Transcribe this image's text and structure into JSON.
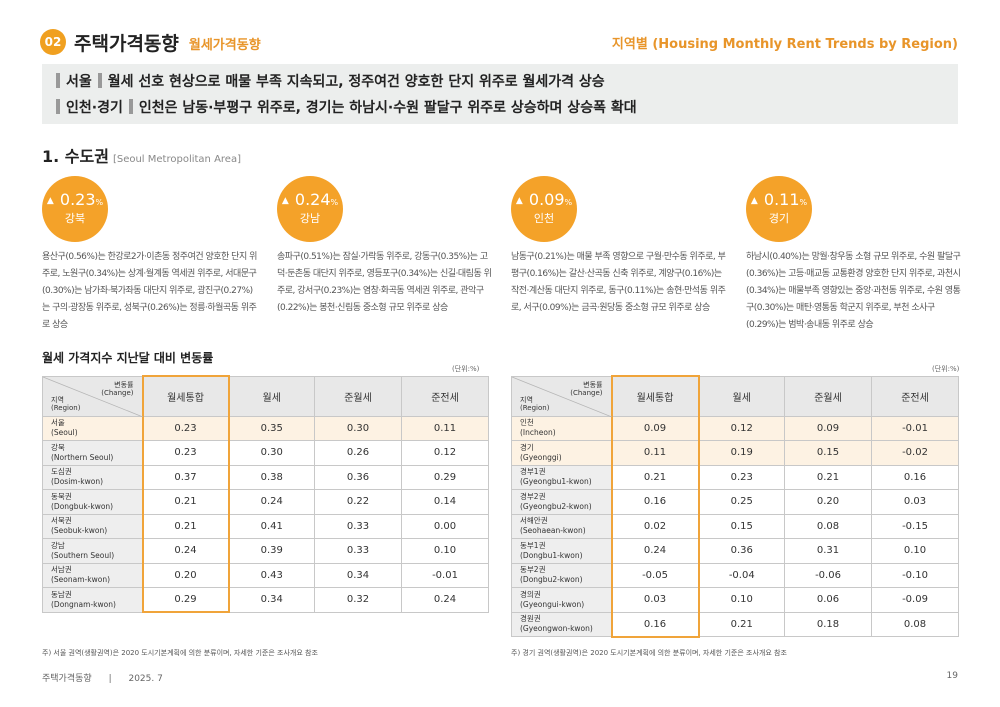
{
  "header": {
    "section_number": "02",
    "section_title": "주택가격동향",
    "section_subtitle": "월세가격동향",
    "region_title": "지역별 (Housing Monthly Rent Trends by Region)"
  },
  "summary": {
    "lines": [
      {
        "region": "서울",
        "text": "월세 선호 현상으로 매물 부족 지속되고, 정주여건 양호한 단지 위주로 월세가격 상승"
      },
      {
        "region": "인천·경기",
        "text": "인천은 남동·부평구 위주로, 경기는 하남시·수원 팔달구 위주로 상승하며 상승폭 확대"
      }
    ]
  },
  "metro": {
    "title": "1. 수도권",
    "title_en": "[Seoul Metropolitan Area]"
  },
  "highlights": [
    {
      "value": "0.23",
      "unit": "%",
      "name": "강북",
      "desc": "용산구(0.56%)는 한강로2가·이촌동 정주여건 양호한 단지 위주로, 노원구(0.34%)는 상계·월계동 역세권 위주로, 서대문구(0.30%)는 남가좌·북가좌동 대단지 위주로, 광진구(0.27%)는 구의·광장동 위주로, 성북구(0.26%)는 정릉·하월곡동 위주로 상승"
    },
    {
      "value": "0.24",
      "unit": "%",
      "name": "강남",
      "desc": "송파구(0.51%)는 잠실·가락동 위주로, 강동구(0.35%)는 고덕·둔촌동 대단지 위주로, 영등포구(0.34%)는 신길·대림동 위주로, 강서구(0.23%)는 염창·화곡동 역세권 위주로, 관악구(0.22%)는 봉천·신림동 중소형 규모 위주로 상승"
    },
    {
      "value": "0.09",
      "unit": "%",
      "name": "인천",
      "desc": "남동구(0.21%)는 매물 부족 영향으로 구월·만수동 위주로, 부평구(0.16%)는 갈산·산곡동 신축 위주로, 계양구(0.16%)는 작전·계산동 대단지 위주로, 동구(0.11%)는 송현·만석동 위주로, 서구(0.09%)는 금곡·원당동 중소형 규모 위주로 상승"
    },
    {
      "value": "0.11",
      "unit": "%",
      "name": "경기",
      "desc": "하남시(0.40%)는 망월·창우동 소형 규모 위주로, 수원 팔달구(0.36%)는 고등·매교동 교통환경 양호한 단지 위주로, 과천시(0.34%)는 매물부족 영향있는 중앙·과천동 위주로, 수원 영통구(0.30%)는 매탄·영통동 학군지 위주로, 부천 소사구(0.29%)는 범박·송내동 위주로 상승"
    }
  ],
  "table_title": "월세 가격지수 지난달 대비 변동률",
  "unit_label": "(단위:%)",
  "table_header": {
    "change": "변동률",
    "change_en": "(Change)",
    "region": "지역",
    "region_en": "(Region)",
    "columns": [
      "월세통합",
      "월세",
      "준월세",
      "준전세"
    ]
  },
  "table_left": [
    {
      "name": "서울",
      "name_en": "(Seoul)",
      "values": [
        "0.23",
        "0.35",
        "0.30",
        "0.11"
      ]
    },
    {
      "name": "강북",
      "name_en": "(Northern Seoul)",
      "values": [
        "0.23",
        "0.30",
        "0.26",
        "0.12"
      ]
    },
    {
      "name": "도심권",
      "name_en": "(Dosim-kwon)",
      "values": [
        "0.37",
        "0.38",
        "0.36",
        "0.29"
      ]
    },
    {
      "name": "동북권",
      "name_en": "(Dongbuk-kwon)",
      "values": [
        "0.21",
        "0.24",
        "0.22",
        "0.14"
      ]
    },
    {
      "name": "서북권",
      "name_en": "(Seobuk-kwon)",
      "values": [
        "0.21",
        "0.41",
        "0.33",
        "0.00"
      ]
    },
    {
      "name": "강남",
      "name_en": "(Southern Seoul)",
      "values": [
        "0.24",
        "0.39",
        "0.33",
        "0.10"
      ]
    },
    {
      "name": "서남권",
      "name_en": "(Seonam-kwon)",
      "values": [
        "0.20",
        "0.43",
        "0.34",
        "-0.01"
      ]
    },
    {
      "name": "동남권",
      "name_en": "(Dongnam-kwon)",
      "values": [
        "0.29",
        "0.34",
        "0.32",
        "0.24"
      ]
    }
  ],
  "table_right": [
    {
      "name": "인천",
      "name_en": "(Incheon)",
      "values": [
        "0.09",
        "0.12",
        "0.09",
        "-0.01"
      ]
    },
    {
      "name": "경기",
      "name_en": "(Gyeonggi)",
      "values": [
        "0.11",
        "0.19",
        "0.15",
        "-0.02"
      ]
    },
    {
      "name": "경부1권",
      "name_en": "(Gyeongbu1-kwon)",
      "values": [
        "0.21",
        "0.23",
        "0.21",
        "0.16"
      ]
    },
    {
      "name": "경부2권",
      "name_en": "(Gyeongbu2-kwon)",
      "values": [
        "0.16",
        "0.25",
        "0.20",
        "0.03"
      ]
    },
    {
      "name": "서해안권",
      "name_en": "(Seohaean-kwon)",
      "values": [
        "0.02",
        "0.15",
        "0.08",
        "-0.15"
      ]
    },
    {
      "name": "동부1권",
      "name_en": "(Dongbu1-kwon)",
      "values": [
        "0.24",
        "0.36",
        "0.31",
        "0.10"
      ]
    },
    {
      "name": "동부2권",
      "name_en": "(Dongbu2-kwon)",
      "values": [
        "-0.05",
        "-0.04",
        "-0.06",
        "-0.10"
      ]
    },
    {
      "name": "경의권",
      "name_en": "(Gyeongui-kwon)",
      "values": [
        "0.03",
        "0.10",
        "0.06",
        "-0.09"
      ]
    },
    {
      "name": "경원권",
      "name_en": "(Gyeongwon-kwon)",
      "values": [
        "0.16",
        "0.21",
        "0.18",
        "0.08"
      ]
    }
  ],
  "note_left": "주) 서울 권역(생활권역)은 2020 도시기본계획에 의한 분류이며, 자세한 기준은 조사개요 참조",
  "note_right": "주) 경기 권역(생활권역)은 2020 도시기본계획에 의한 분류이며, 자세한 기준은 조사개요 참조",
  "footer": {
    "title": "주택가격동향",
    "separator": "|",
    "date": "2025. 7",
    "page": "19"
  },
  "colors": {
    "accent": "#f4a229",
    "highlight_row": "#fdf2e3"
  }
}
